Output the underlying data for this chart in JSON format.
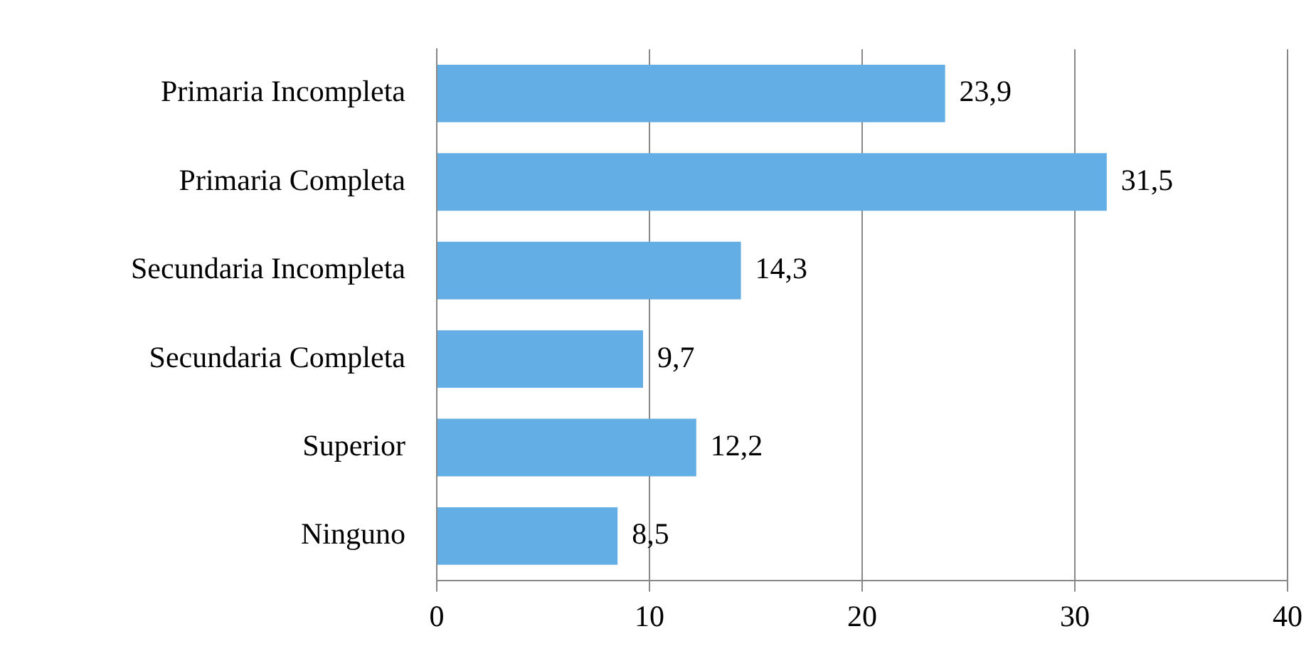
{
  "chart_data": {
    "type": "bar",
    "orientation": "horizontal",
    "categories": [
      "Primaria Incompleta",
      "Primaria Completa",
      "Secundaria Incompleta",
      "Secundaria Completa",
      "Superior",
      "Ninguno"
    ],
    "values": [
      23.9,
      31.5,
      14.3,
      9.7,
      12.2,
      8.5
    ],
    "value_labels": [
      "23,9",
      "31,5",
      "14,3",
      "9,7",
      "12,2",
      "8,5"
    ],
    "color": "#63aee4",
    "xlim": [
      0,
      40
    ],
    "xticks": [
      0,
      10,
      20,
      30,
      40
    ],
    "grid": "x"
  }
}
